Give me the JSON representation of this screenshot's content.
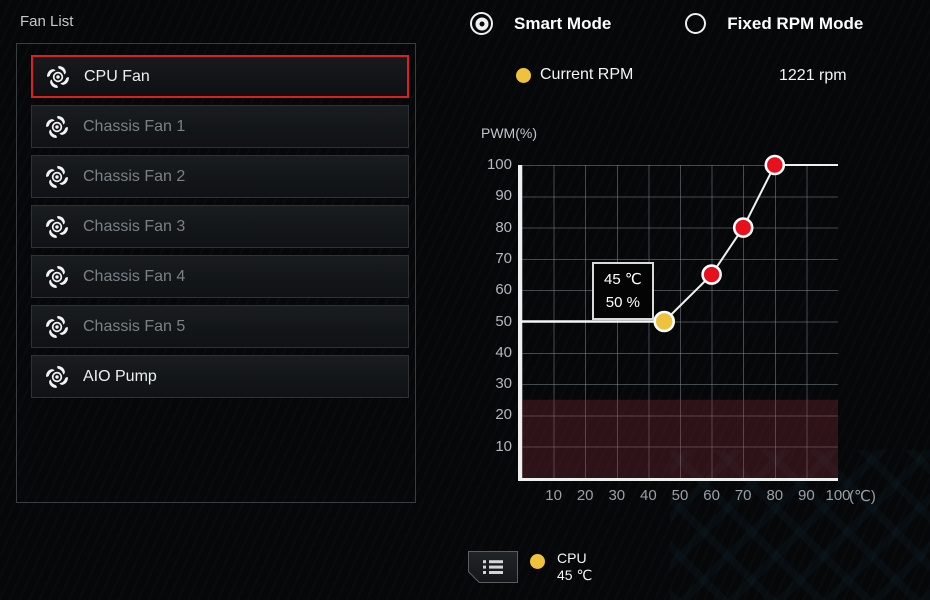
{
  "fan_list": {
    "title": "Fan List",
    "items": [
      {
        "label": "CPU Fan",
        "selected": true,
        "active": true
      },
      {
        "label": "Chassis Fan 1",
        "selected": false,
        "active": false
      },
      {
        "label": "Chassis Fan 2",
        "selected": false,
        "active": false
      },
      {
        "label": "Chassis Fan 3",
        "selected": false,
        "active": false
      },
      {
        "label": "Chassis Fan 4",
        "selected": false,
        "active": false
      },
      {
        "label": "Chassis Fan 5",
        "selected": false,
        "active": false
      },
      {
        "label": "AIO Pump",
        "selected": false,
        "active": true
      }
    ]
  },
  "modes": {
    "smart": {
      "label": "Smart Mode",
      "selected": true
    },
    "fixed": {
      "label": "Fixed RPM Mode",
      "selected": false
    }
  },
  "current_rpm": {
    "label": "Current RPM",
    "value": "1221 rpm"
  },
  "chart_data": {
    "type": "line",
    "ylabel": "PWM(%)",
    "xlabel": "(℃)",
    "xlim": [
      0,
      100
    ],
    "ylim": [
      0,
      100
    ],
    "x_ticks": [
      10,
      20,
      30,
      40,
      50,
      60,
      70,
      80,
      90,
      100
    ],
    "y_ticks": [
      100,
      90,
      80,
      70,
      60,
      50,
      40,
      30,
      20,
      10
    ],
    "grid": true,
    "series": [
      {
        "name": "CPU fan curve",
        "points": [
          {
            "temp_c": 45,
            "pwm_pct": 50
          },
          {
            "temp_c": 60,
            "pwm_pct": 65
          },
          {
            "temp_c": 70,
            "pwm_pct": 80
          },
          {
            "temp_c": 80,
            "pwm_pct": 100
          }
        ],
        "extends_flat_to_temp": 100,
        "guide_line_pwm": 50
      }
    ],
    "min_duty_region": {
      "pwm_from": 0,
      "pwm_to": 25
    },
    "tooltip": {
      "line1": "45 ℃",
      "line2": "50 %"
    },
    "colors": {
      "active_point": "#eec23b",
      "point": "#e8101d",
      "line": "#f0f0f0",
      "min_region": "rgba(150,52,62,0.28)"
    }
  },
  "legend": {
    "sensor": "CPU",
    "temp": "45 ℃"
  },
  "colors": {
    "accent_red": "#dd1f1f",
    "accent_yellow": "#eec23b",
    "background": "#050709"
  }
}
